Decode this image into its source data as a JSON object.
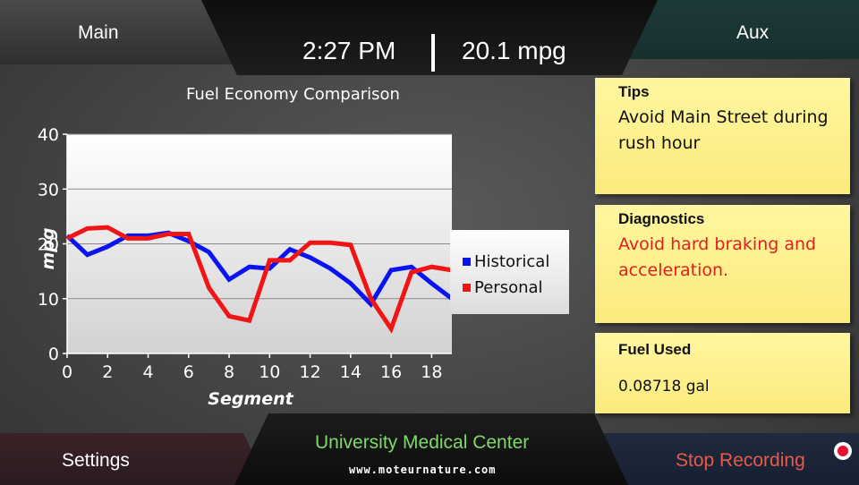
{
  "nav": {
    "main_label": "Main",
    "aux_label": "Aux",
    "settings_label": "Settings",
    "stop_recording_label": "Stop Recording"
  },
  "status": {
    "time": "2:27 PM",
    "mpg": "20.1 mpg"
  },
  "destination": "University Medical Center",
  "watermark": "www.moteurnature.com",
  "notes": {
    "tips": {
      "title": "Tips",
      "body": "Avoid Main Street during rush hour"
    },
    "diagnostics": {
      "title": "Diagnostics",
      "body": "Avoid hard braking and acceleration."
    },
    "fuel": {
      "title": "Fuel Used",
      "body": "0.08718 gal"
    }
  },
  "colors": {
    "historical": "#0a14f0",
    "personal": "#f01414",
    "diagnostics_text": "#e0201e",
    "destination_text": "#7fd86a",
    "stop_recording_text": "#e85a4a"
  },
  "chart_data": {
    "type": "line",
    "title": "Fuel Economy Comparison",
    "xlabel": "Segment",
    "ylabel": "mpg",
    "xlim": [
      0,
      19
    ],
    "ylim": [
      0,
      40
    ],
    "x_ticks": [
      0,
      2,
      4,
      6,
      8,
      10,
      12,
      14,
      16,
      18
    ],
    "y_ticks": [
      0,
      10,
      20,
      30,
      40
    ],
    "grid": true,
    "legend_position": "right",
    "x": [
      0,
      1,
      2,
      3,
      4,
      5,
      6,
      7,
      8,
      9,
      10,
      11,
      12,
      13,
      14,
      15,
      16,
      17,
      18,
      19
    ],
    "series": [
      {
        "name": "Historical",
        "values": [
          21.5,
          18,
          19.5,
          21.5,
          21.5,
          22,
          20.5,
          18.5,
          13.5,
          15.8,
          15.5,
          19,
          17.5,
          15.5,
          12.8,
          9,
          15.2,
          15.8,
          12.8,
          10
        ]
      },
      {
        "name": "Personal",
        "values": [
          21,
          22.8,
          23,
          21,
          21,
          21.8,
          21.8,
          12,
          6.8,
          6,
          17,
          17,
          20.2,
          20.2,
          19.8,
          10,
          4.5,
          14.8,
          15.8,
          15.2
        ]
      }
    ]
  }
}
